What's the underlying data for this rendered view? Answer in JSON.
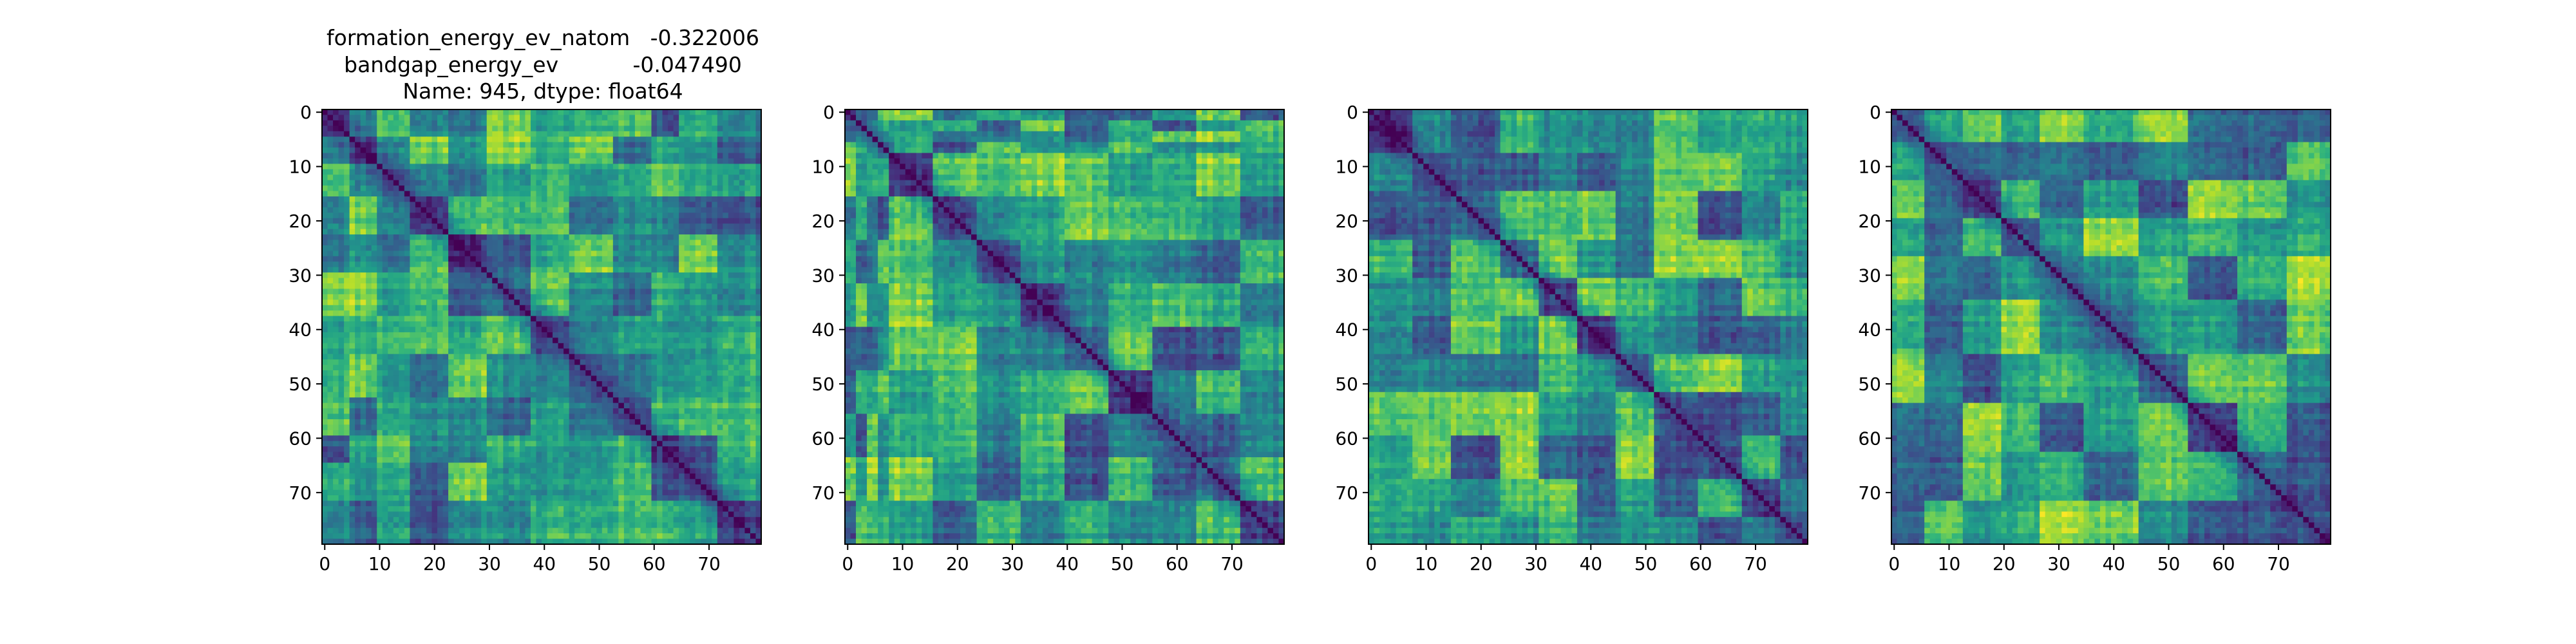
{
  "figure": {
    "title_lines": [
      "formation_energy_ev_natom   -0.322006",
      "bandgap_energy_ev           -0.047490",
      "Name: 945, dtype: float64"
    ]
  },
  "chart_data": [
    {
      "type": "heatmap",
      "title": "",
      "xlabel": "",
      "ylabel": "",
      "matrix_size": 80,
      "xticks": [
        0,
        10,
        20,
        30,
        40,
        50,
        60,
        70
      ],
      "yticks": [
        0,
        10,
        20,
        30,
        40,
        50,
        60,
        70
      ],
      "xlim": [
        0,
        79
      ],
      "ylim": [
        79,
        0
      ],
      "colormap": "viridis",
      "diagonal_value": 0,
      "block_boundaries": [
        0,
        5,
        10,
        16,
        23,
        30,
        38,
        45,
        53,
        60,
        65,
        72,
        80
      ],
      "seed": 11
    },
    {
      "type": "heatmap",
      "title": "",
      "xlabel": "",
      "ylabel": "",
      "matrix_size": 80,
      "xticks": [
        0,
        10,
        20,
        30,
        40,
        50,
        60,
        70
      ],
      "yticks": [
        0,
        10,
        20,
        30,
        40,
        50,
        60,
        70
      ],
      "xlim": [
        0,
        79
      ],
      "ylim": [
        79,
        0
      ],
      "colormap": "viridis",
      "diagonal_value": 0,
      "block_boundaries": [
        0,
        2,
        4,
        6,
        8,
        16,
        24,
        32,
        40,
        48,
        56,
        64,
        72,
        80
      ],
      "seed": 23
    },
    {
      "type": "heatmap",
      "title": "",
      "xlabel": "",
      "ylabel": "",
      "matrix_size": 80,
      "xticks": [
        0,
        10,
        20,
        30,
        40,
        50,
        60,
        70
      ],
      "yticks": [
        0,
        10,
        20,
        30,
        40,
        50,
        60,
        70
      ],
      "xlim": [
        0,
        79
      ],
      "ylim": [
        79,
        0
      ],
      "colormap": "viridis",
      "diagonal_value": 0,
      "block_boundaries": [
        0,
        8,
        15,
        24,
        31,
        38,
        45,
        52,
        60,
        68,
        75,
        80
      ],
      "seed": 37
    },
    {
      "type": "heatmap",
      "title": "",
      "xlabel": "",
      "ylabel": "",
      "matrix_size": 80,
      "xticks": [
        0,
        10,
        20,
        30,
        40,
        50,
        60,
        70
      ],
      "yticks": [
        0,
        10,
        20,
        30,
        40,
        50,
        60,
        70
      ],
      "xlim": [
        0,
        79
      ],
      "ylim": [
        79,
        0
      ],
      "colormap": "viridis",
      "diagonal_value": 0,
      "block_boundaries": [
        0,
        6,
        13,
        20,
        27,
        35,
        45,
        54,
        63,
        72,
        80
      ],
      "seed": 51
    }
  ]
}
